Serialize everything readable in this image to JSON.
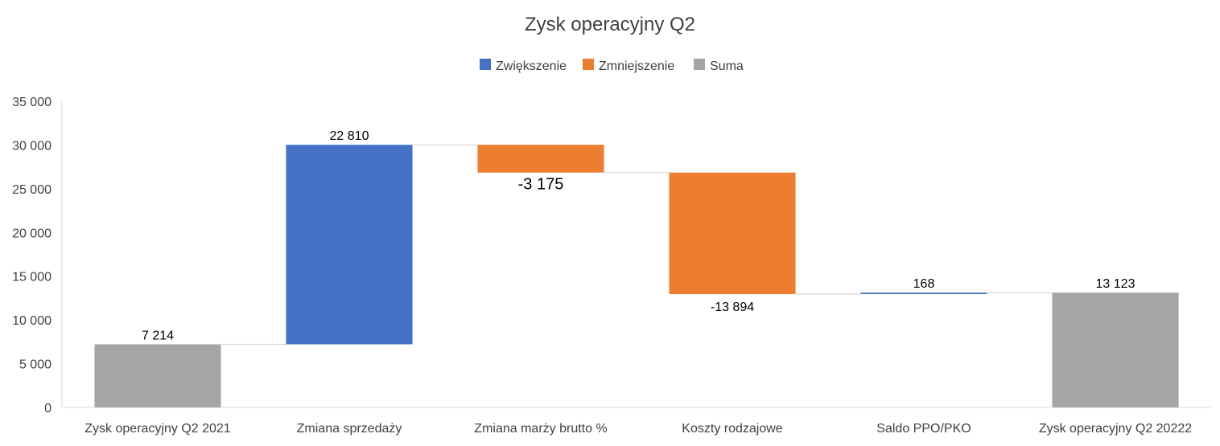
{
  "chart_data": {
    "type": "waterfall",
    "title": "Zysk operacyjny Q2",
    "legend": {
      "placement": "top",
      "entries": [
        {
          "key": "increase",
          "label": "Zwiększenie",
          "color": "#4472C4"
        },
        {
          "key": "decrease",
          "label": "Zmniejszenie",
          "color": "#ED7D31"
        },
        {
          "key": "total",
          "label": "Suma",
          "color": "#A5A5A5"
        }
      ]
    },
    "ylim": [
      0,
      35000
    ],
    "yticks": [
      0,
      5000,
      10000,
      15000,
      20000,
      25000,
      30000,
      35000
    ],
    "ytick_labels": [
      "0",
      "5 000",
      "10 000",
      "15 000",
      "20 000",
      "25 000",
      "30 000",
      "35 000"
    ],
    "grid": false,
    "categories": [
      "Zysk operacyjny Q2 2021",
      "Zmiana sprzedaży",
      "Zmiana marży brutto %",
      "Koszty rodzajowe",
      "Saldo PPO/PKO",
      "Zysk operacyjny Q2 20222"
    ],
    "values": [
      7214,
      22810,
      -3175,
      -13894,
      168,
      13123
    ],
    "kinds": [
      "total",
      "increase",
      "decrease",
      "decrease",
      "increase",
      "total"
    ],
    "data_labels": [
      "7 214",
      "22 810",
      "-3 175",
      "-13 894",
      "168",
      "13 123"
    ]
  }
}
